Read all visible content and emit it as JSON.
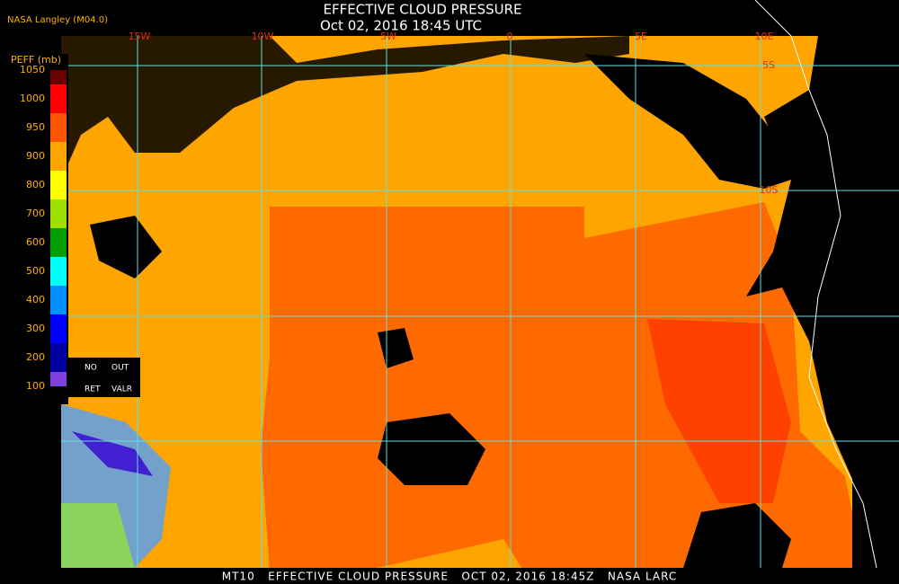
{
  "header": {
    "source": "NASA Langley (M04.0)",
    "title": "EFFECTIVE CLOUD PRESSURE",
    "subtitle": "Oct 02, 2016 18:45 UTC"
  },
  "legend": {
    "title": "PEFF (mb)",
    "labels": [
      "1050",
      "1000",
      "950",
      "900",
      "800",
      "700",
      "600",
      "500",
      "400",
      "300",
      "200",
      "100"
    ],
    "boxes": [
      "NO",
      "OUT",
      "RET",
      "VALR"
    ]
  },
  "grid": {
    "longitudes": [
      "15W",
      "10W",
      "5W",
      "0",
      "5E",
      "10E"
    ],
    "latitudes": [
      "5S",
      "10S"
    ]
  },
  "footer": "MT10   EFFECTIVE CLOUD PRESSURE   OCT 02, 2016 18:45Z   NASA LARC"
}
